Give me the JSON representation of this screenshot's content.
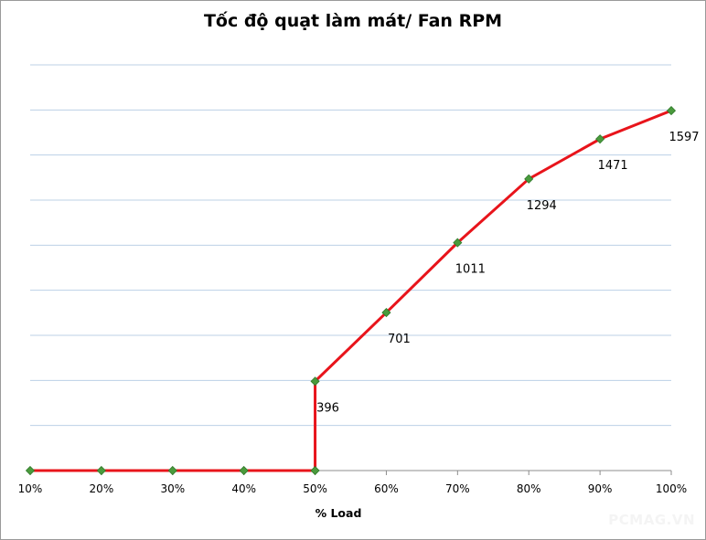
{
  "chart_data": {
    "type": "line",
    "title": "Tốc độ quạt làm mát/ Fan RPM",
    "xlabel": "% Load",
    "ylabel": "",
    "categories": [
      "10%",
      "20%",
      "30%",
      "40%",
      "50%",
      "60%",
      "70%",
      "80%",
      "90%",
      "100%"
    ],
    "series": [
      {
        "points": [
          {
            "x": "10%",
            "y": 0
          },
          {
            "x": "20%",
            "y": 0
          },
          {
            "x": "30%",
            "y": 0
          },
          {
            "x": "40%",
            "y": 0
          },
          {
            "x": "50%",
            "y": 0
          },
          {
            "x": "50%",
            "y": 396,
            "label": "396"
          },
          {
            "x": "60%",
            "y": 701,
            "label": "701"
          },
          {
            "x": "70%",
            "y": 1011,
            "label": "1011"
          },
          {
            "x": "80%",
            "y": 1294,
            "label": "1294"
          },
          {
            "x": "90%",
            "y": 1471,
            "label": "1471"
          },
          {
            "x": "100%",
            "y": 1597,
            "label": "1597"
          }
        ]
      }
    ],
    "ylim": [
      0,
      1800
    ],
    "ytick_step": 200,
    "y_tick_labels_shown": false,
    "grid": "horizontal",
    "legend": "none",
    "colors": {
      "line": "#e8141b",
      "marker": "#4a9a3c",
      "grid": "#bcd0e6"
    }
  },
  "watermark": "PCMAG.VN"
}
